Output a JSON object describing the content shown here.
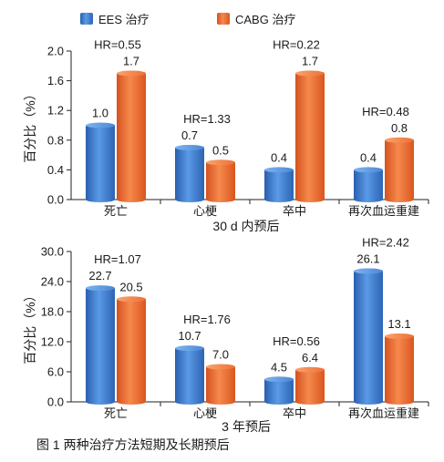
{
  "colors": {
    "ees": "#3f7fd0",
    "cabg": "#ee6a33"
  },
  "legend": {
    "ees_label": "EES 治疗",
    "cabg_label": "CABG 治疗"
  },
  "caption": "图 1  两种治疗方法短期及长期预后",
  "chart_data": [
    {
      "type": "bar",
      "title": "",
      "xlabel": "30 d 内预后",
      "ylabel": "百分比（%）",
      "ylim": [
        0.0,
        2.0
      ],
      "yticks": [
        "0.0",
        "0.4",
        "0.8",
        "1.2",
        "1.6",
        "2.0"
      ],
      "categories": [
        "死亡",
        "心梗",
        "卒中",
        "再次血运重建"
      ],
      "series": [
        {
          "name": "EES 治疗",
          "values": [
            1.0,
            0.7,
            0.4,
            0.4
          ],
          "labels": [
            "1.0",
            "0.7",
            "0.4",
            "0.4"
          ]
        },
        {
          "name": "CABG 治疗",
          "values": [
            1.7,
            0.5,
            1.7,
            0.8
          ],
          "labels": [
            "1.7",
            "0.5",
            "1.7",
            "0.8"
          ]
        }
      ],
      "hr": [
        "HR=0.55",
        "HR=1.33",
        "HR=0.22",
        "HR=0.48"
      ],
      "legend_position": "top"
    },
    {
      "type": "bar",
      "title": "",
      "xlabel": "3 年预后",
      "ylabel": "百分比（%）",
      "ylim": [
        0.0,
        30.0
      ],
      "yticks": [
        "0.0",
        "6.0",
        "12.0",
        "18.0",
        "24.0",
        "30.0"
      ],
      "categories": [
        "死亡",
        "心梗",
        "卒中",
        "再次血运重建"
      ],
      "series": [
        {
          "name": "EES 治疗",
          "values": [
            22.7,
            10.7,
            4.5,
            26.1
          ],
          "labels": [
            "22.7",
            "10.7",
            "4.5",
            "26.1"
          ]
        },
        {
          "name": "CABG 治疗",
          "values": [
            20.5,
            7.0,
            6.4,
            13.1
          ],
          "labels": [
            "20.5",
            "7.0",
            "6.4",
            "13.1"
          ]
        }
      ],
      "hr": [
        "HR=1.07",
        "HR=1.76",
        "HR=0.56",
        "HR=2.42"
      ],
      "legend_position": "none"
    }
  ]
}
